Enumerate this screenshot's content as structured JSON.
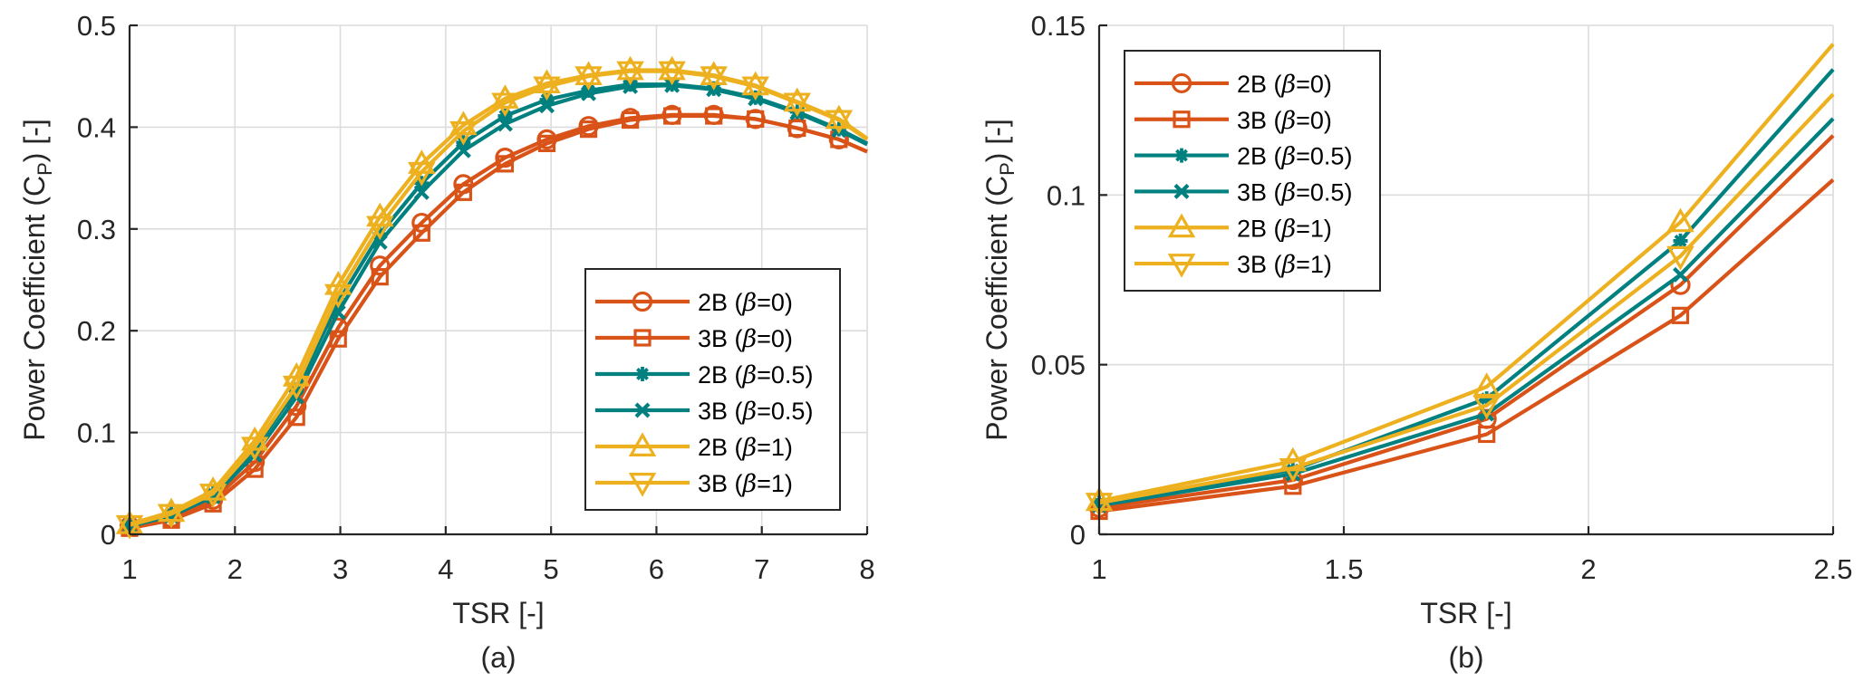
{
  "chart_data": [
    {
      "type": "line",
      "panel_label": "(a)",
      "xlabel": "TSR [-]",
      "ylabel": "Power Coefficient (C_P) [-]",
      "ylabel_parts": {
        "pre": "Power Coefficient (C",
        "sub": "P",
        "post": ") [-]"
      },
      "xlim": [
        1,
        8
      ],
      "ylim": [
        0,
        0.5
      ],
      "xticks": [
        1,
        2,
        3,
        4,
        5,
        6,
        7,
        8
      ],
      "xtick_labels": [
        "1",
        "2",
        "3",
        "4",
        "5",
        "6",
        "7",
        "8"
      ],
      "yticks": [
        0,
        0.1,
        0.2,
        0.3,
        0.4,
        0.5
      ],
      "ytick_labels": [
        "0",
        "0.1",
        "0.2",
        "0.3",
        "0.4",
        "0.5"
      ],
      "grid": true,
      "legend_position": "bottom-right",
      "x": [
        1.0,
        1.396,
        1.792,
        2.188,
        2.584,
        2.98,
        3.376,
        3.772,
        4.168,
        4.564,
        4.96,
        5.356,
        5.752,
        6.148,
        6.544,
        6.94,
        7.336,
        7.732,
        8.0
      ],
      "marker_count": 18,
      "series": [
        {
          "name": "2B (β=0)",
          "label_pre": "2B (",
          "label_sym": "β",
          "label_post": "=0)",
          "color": "#D95319",
          "marker": "circle",
          "values": [
            0.008,
            0.016,
            0.034,
            0.071,
            0.126,
            0.203,
            0.264,
            0.306,
            0.344,
            0.37,
            0.388,
            0.401,
            0.409,
            0.412,
            0.412,
            0.408,
            0.399,
            0.388,
            0.376
          ]
        },
        {
          "name": "3B (β=0)",
          "label_pre": "3B (",
          "label_sym": "β",
          "label_post": "=0)",
          "color": "#D95319",
          "marker": "square",
          "values": [
            0.006,
            0.014,
            0.03,
            0.064,
            0.115,
            0.192,
            0.253,
            0.296,
            0.336,
            0.364,
            0.384,
            0.398,
            0.407,
            0.411,
            0.411,
            0.408,
            0.399,
            0.388,
            0.376
          ]
        },
        {
          "name": "2B (β=0.5)",
          "label_pre": "2B (",
          "label_sym": "β",
          "label_post": "=0.5)",
          "color": "#00807F",
          "marker": "asterisk",
          "values": [
            0.009,
            0.02,
            0.04,
            0.084,
            0.142,
            0.228,
            0.295,
            0.345,
            0.385,
            0.411,
            0.427,
            0.436,
            0.442,
            0.442,
            0.438,
            0.429,
            0.415,
            0.398,
            0.384
          ]
        },
        {
          "name": "3B (β=0.5)",
          "label_pre": "3B (",
          "label_sym": "β",
          "label_post": "=0.5)",
          "color": "#00807F",
          "marker": "x",
          "values": [
            0.008,
            0.018,
            0.037,
            0.078,
            0.135,
            0.218,
            0.287,
            0.336,
            0.377,
            0.403,
            0.421,
            0.433,
            0.44,
            0.441,
            0.437,
            0.428,
            0.414,
            0.397,
            0.383
          ]
        },
        {
          "name": "2B (β=1)",
          "label_pre": "2B (",
          "label_sym": "β",
          "label_post": "=1)",
          "color": "#EDB120",
          "marker": "triangle-up",
          "values": [
            0.01,
            0.022,
            0.043,
            0.092,
            0.155,
            0.245,
            0.312,
            0.364,
            0.402,
            0.428,
            0.443,
            0.451,
            0.456,
            0.456,
            0.451,
            0.441,
            0.425,
            0.408,
            0.389
          ]
        },
        {
          "name": "3B (β=1)",
          "label_pre": "3B (",
          "label_sym": "β",
          "label_post": "=1)",
          "color": "#EDB120",
          "marker": "triangle-down",
          "values": [
            0.009,
            0.02,
            0.04,
            0.086,
            0.146,
            0.236,
            0.303,
            0.356,
            0.396,
            0.424,
            0.44,
            0.45,
            0.455,
            0.455,
            0.45,
            0.44,
            0.424,
            0.407,
            0.388
          ]
        }
      ]
    },
    {
      "type": "line",
      "panel_label": "(b)",
      "xlabel": "TSR [-]",
      "ylabel": "Power Coefficient (C_P) [-]",
      "ylabel_parts": {
        "pre": "Power Coefficient (C",
        "sub": "P",
        "post": ") [-]"
      },
      "xlim": [
        1,
        2.5
      ],
      "ylim": [
        0,
        0.15
      ],
      "xticks": [
        1,
        1.5,
        2,
        2.5
      ],
      "xtick_labels": [
        "1",
        "1.5",
        "2",
        "2.5"
      ],
      "yticks": [
        0,
        0.05,
        0.1,
        0.15
      ],
      "ytick_labels": [
        "0",
        "0.05",
        "0.1",
        "0.15"
      ],
      "grid": true,
      "legend_position": "top-left",
      "x": [
        1.0,
        1.396,
        1.792,
        2.188,
        2.5
      ],
      "marker_count": 4,
      "series": [
        {
          "name": "2B (β=0)",
          "label_pre": "2B (",
          "label_sym": "β",
          "label_post": "=0)",
          "color": "#D95319",
          "marker": "circle",
          "values": [
            0.0078,
            0.016,
            0.034,
            0.0735,
            0.1175
          ]
        },
        {
          "name": "3B (β=0)",
          "label_pre": "3B (",
          "label_sym": "β",
          "label_post": "=0)",
          "color": "#D95319",
          "marker": "square",
          "values": [
            0.0068,
            0.0142,
            0.0295,
            0.0645,
            0.1045
          ]
        },
        {
          "name": "2B (β=0.5)",
          "label_pre": "2B (",
          "label_sym": "β",
          "label_post": "=0.5)",
          "color": "#00807F",
          "marker": "asterisk",
          "values": [
            0.0092,
            0.019,
            0.04,
            0.0865,
            0.137
          ]
        },
        {
          "name": "3B (β=0.5)",
          "label_pre": "3B (",
          "label_sym": "β",
          "label_post": "=0.5)",
          "color": "#00807F",
          "marker": "x",
          "values": [
            0.0085,
            0.0178,
            0.0355,
            0.0765,
            0.1225
          ]
        },
        {
          "name": "2B (β=1)",
          "label_pre": "2B (",
          "label_sym": "β",
          "label_post": "=1)",
          "color": "#EDB120",
          "marker": "triangle-up",
          "values": [
            0.0098,
            0.0215,
            0.0435,
            0.092,
            0.1445
          ]
        },
        {
          "name": "3B (β=1)",
          "label_pre": "3B (",
          "label_sym": "β",
          "label_post": "=1)",
          "color": "#EDB120",
          "marker": "triangle-down",
          "values": [
            0.0093,
            0.0195,
            0.038,
            0.082,
            0.1297
          ]
        }
      ]
    }
  ]
}
